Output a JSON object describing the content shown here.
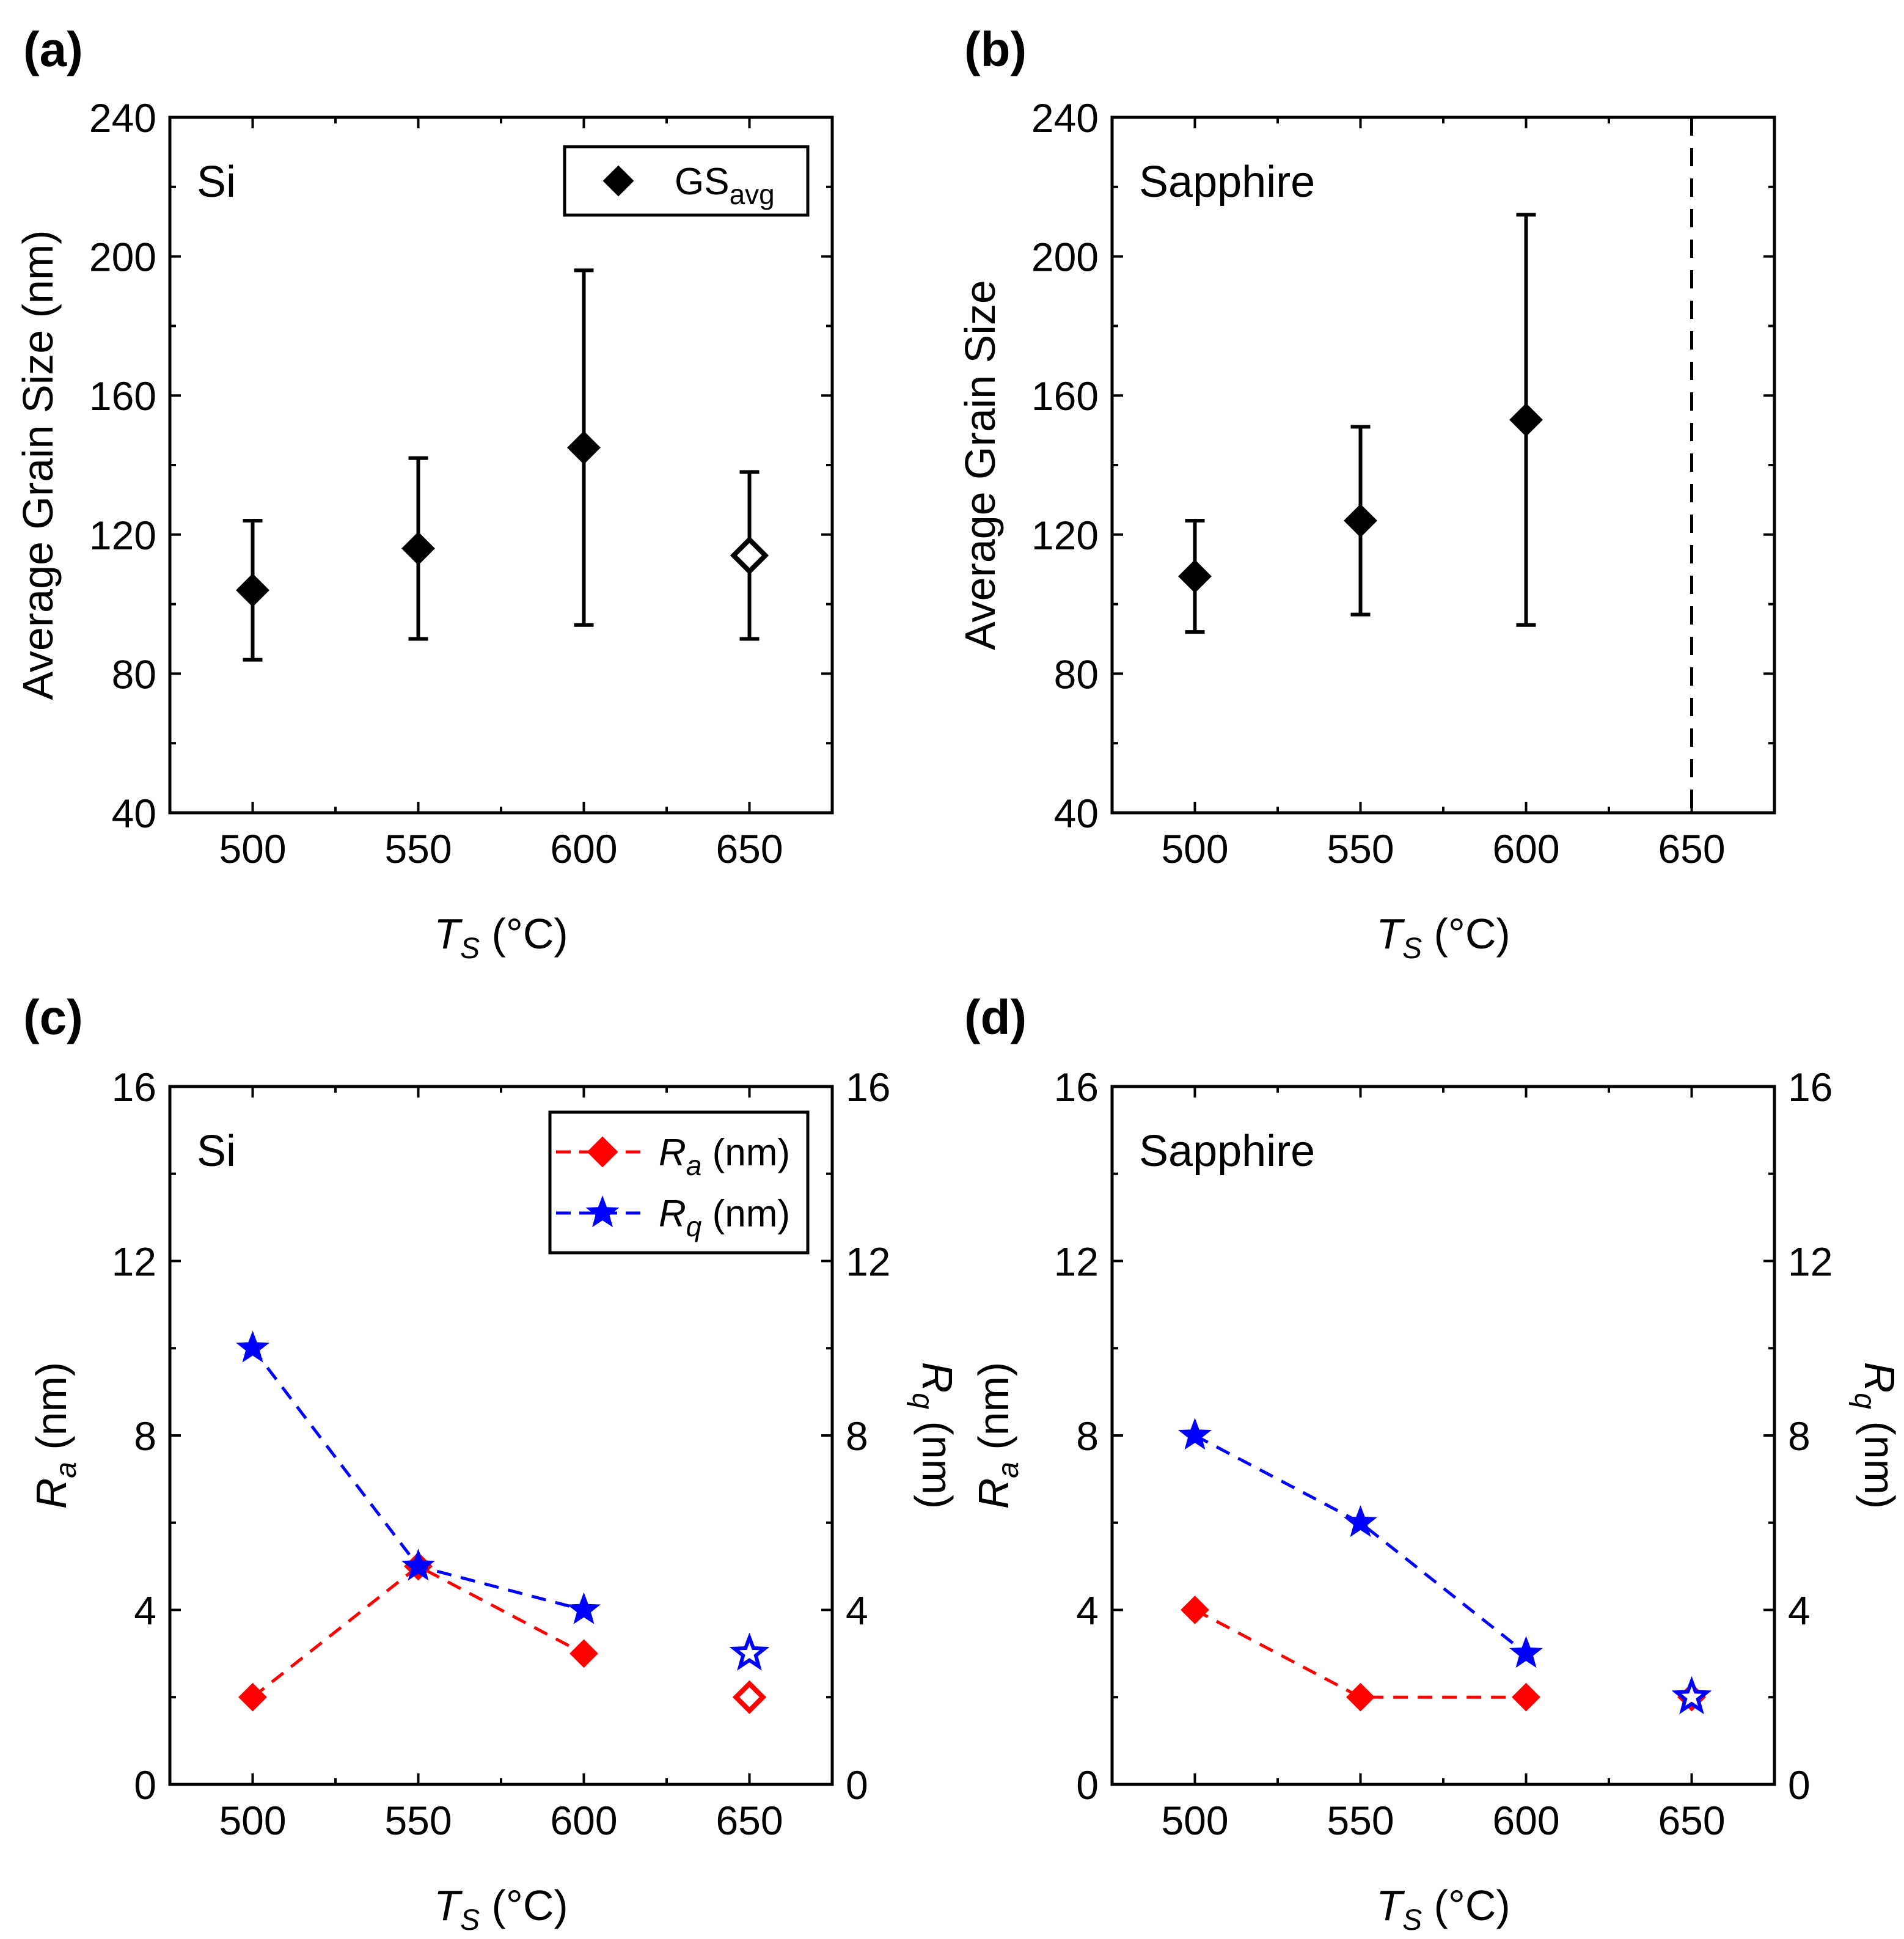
{
  "chart_data": [
    {
      "id": "a",
      "type": "scatter",
      "panel_label": "(a)",
      "annotation": "Si",
      "xlabel": "T_S (°C)",
      "xlabel_main": "T",
      "xlabel_sub": "S",
      "xlabel_unit": " (°C)",
      "ylabel": "Average Grain Size (nm)",
      "xlim": [
        475,
        675
      ],
      "ylim": [
        40,
        240
      ],
      "xticks": [
        500,
        550,
        600,
        650
      ],
      "yticks": [
        40,
        80,
        120,
        160,
        200,
        240
      ],
      "legend": {
        "position": "top-right",
        "entries": [
          {
            "name": "GS",
            "sub": "avg",
            "marker": "diamond",
            "color": "#000000"
          }
        ]
      },
      "series": [
        {
          "name": "GSavg",
          "marker": "diamond",
          "color": "#000000",
          "x": [
            500,
            550,
            600,
            650
          ],
          "y": [
            104,
            116,
            145,
            114
          ],
          "err_low": [
            84,
            90,
            94,
            90
          ],
          "err_high": [
            124,
            142,
            196,
            138
          ],
          "hollow": [
            false,
            false,
            false,
            true
          ]
        }
      ]
    },
    {
      "id": "b",
      "type": "scatter",
      "panel_label": "(b)",
      "annotation": "Sapphire",
      "xlabel": "T_S (°C)",
      "xlabel_main": "T",
      "xlabel_sub": "S",
      "xlabel_unit": " (°C)",
      "ylabel": "Average Grain Size",
      "xlim": [
        475,
        675
      ],
      "ylim": [
        40,
        240
      ],
      "xticks": [
        500,
        550,
        600,
        650
      ],
      "yticks": [
        40,
        80,
        120,
        160,
        200,
        240
      ],
      "vline_x": 650,
      "series": [
        {
          "name": "GSavg",
          "marker": "diamond",
          "color": "#000000",
          "x": [
            500,
            550,
            600
          ],
          "y": [
            108,
            124,
            153
          ],
          "err_low": [
            92,
            97,
            94
          ],
          "err_high": [
            124,
            151,
            212
          ],
          "hollow": [
            false,
            false,
            false
          ]
        }
      ]
    },
    {
      "id": "c",
      "type": "line",
      "panel_label": "(c)",
      "annotation": "Si",
      "xlabel": "T_S (°C)",
      "xlabel_main": "T",
      "xlabel_sub": "S",
      "xlabel_unit": " (°C)",
      "ylabel": "R_a (nm)",
      "ylabel_main": "R",
      "ylabel_sub": "a",
      "ylabel_unit": " (nm)",
      "y2label": "R_q (nm)",
      "y2label_main": "R",
      "y2label_sub": "q",
      "y2label_unit": " (nm)",
      "xlim": [
        475,
        675
      ],
      "ylim": [
        0,
        16
      ],
      "y2lim": [
        0,
        16
      ],
      "xticks": [
        500,
        550,
        600,
        650
      ],
      "yticks": [
        0,
        4,
        8,
        12,
        16
      ],
      "legend": {
        "position": "top-right",
        "entries": [
          {
            "name": "R",
            "sub": "a",
            "unit": " (nm)",
            "marker": "diamond",
            "color": "#ff0000"
          },
          {
            "name": "R",
            "sub": "q",
            "unit": " (nm)",
            "marker": "star",
            "color": "#0000ff"
          }
        ]
      },
      "series": [
        {
          "name": "Ra (nm)",
          "marker": "diamond",
          "color": "#ff0000",
          "x": [
            500,
            550,
            600,
            650
          ],
          "y": [
            2,
            5,
            3,
            2
          ],
          "hollow": [
            false,
            false,
            false,
            true
          ],
          "line_points": 3
        },
        {
          "name": "Rq (nm)",
          "marker": "star",
          "color": "#0000ff",
          "x": [
            500,
            550,
            600,
            650
          ],
          "y": [
            10,
            5,
            4,
            3
          ],
          "hollow": [
            false,
            false,
            false,
            true
          ],
          "line_points": 3
        }
      ]
    },
    {
      "id": "d",
      "type": "line",
      "panel_label": "(d)",
      "annotation": "Sapphire",
      "xlabel": "T_S (°C)",
      "xlabel_main": "T",
      "xlabel_sub": "S",
      "xlabel_unit": " (°C)",
      "ylabel": "R_a (nm)",
      "ylabel_main": "R",
      "ylabel_sub": "a",
      "ylabel_unit": " (nm)",
      "y2label": "R_q (nm)",
      "y2label_main": "R",
      "y2label_sub": "q",
      "y2label_unit": " (nm)",
      "xlim": [
        475,
        675
      ],
      "ylim": [
        0,
        16
      ],
      "y2lim": [
        0,
        16
      ],
      "xticks": [
        500,
        550,
        600,
        650
      ],
      "yticks": [
        0,
        4,
        8,
        12,
        16
      ],
      "series": [
        {
          "name": "Ra (nm)",
          "marker": "diamond",
          "color": "#ff0000",
          "x": [
            500,
            550,
            600,
            650
          ],
          "y": [
            4,
            2,
            2,
            2
          ],
          "hollow": [
            false,
            false,
            false,
            false
          ],
          "line_points": 3
        },
        {
          "name": "Rq (nm)",
          "marker": "star",
          "color": "#0000ff",
          "x": [
            500,
            550,
            600,
            650
          ],
          "y": [
            8,
            6,
            3,
            2
          ],
          "hollow": [
            false,
            false,
            false,
            true
          ],
          "line_points": 3
        }
      ]
    }
  ]
}
